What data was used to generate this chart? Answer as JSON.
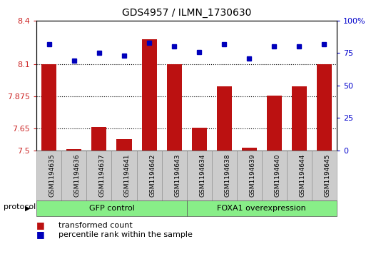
{
  "title": "GDS4957 / ILMN_1730630",
  "samples": [
    "GSM1194635",
    "GSM1194636",
    "GSM1194637",
    "GSM1194641",
    "GSM1194642",
    "GSM1194643",
    "GSM1194634",
    "GSM1194638",
    "GSM1194639",
    "GSM1194640",
    "GSM1194644",
    "GSM1194645"
  ],
  "bar_values": [
    8.1,
    7.51,
    7.66,
    7.575,
    8.27,
    8.1,
    7.655,
    7.945,
    7.52,
    7.88,
    7.945,
    8.1
  ],
  "dot_values": [
    82,
    69,
    75,
    73,
    83,
    80,
    76,
    82,
    71,
    80,
    80,
    82
  ],
  "ylim_left": [
    7.5,
    8.4
  ],
  "ylim_right": [
    0,
    100
  ],
  "yticks_left": [
    7.5,
    7.65,
    7.875,
    8.1,
    8.4
  ],
  "yticks_right": [
    0,
    25,
    50,
    75,
    100
  ],
  "ytick_labels_left": [
    "7.5",
    "7.65",
    "7.875",
    "8.1",
    "8.4"
  ],
  "ytick_labels_right": [
    "0",
    "25",
    "50",
    "75",
    "100%"
  ],
  "hlines": [
    8.1,
    7.875,
    7.65
  ],
  "bar_color": "#BB1111",
  "dot_color": "#0000BB",
  "group1_label": "GFP control",
  "group2_label": "FOXA1 overexpression",
  "group1_count": 6,
  "group2_count": 6,
  "group_color": "#88EE88",
  "xlabel_bg_color": "#CCCCCC",
  "legend_bar_label": "transformed count",
  "legend_dot_label": "percentile rank within the sample",
  "protocol_label": "protocol",
  "bar_width": 0.6,
  "fig_width": 5.13,
  "fig_height": 3.63,
  "dpi": 100
}
